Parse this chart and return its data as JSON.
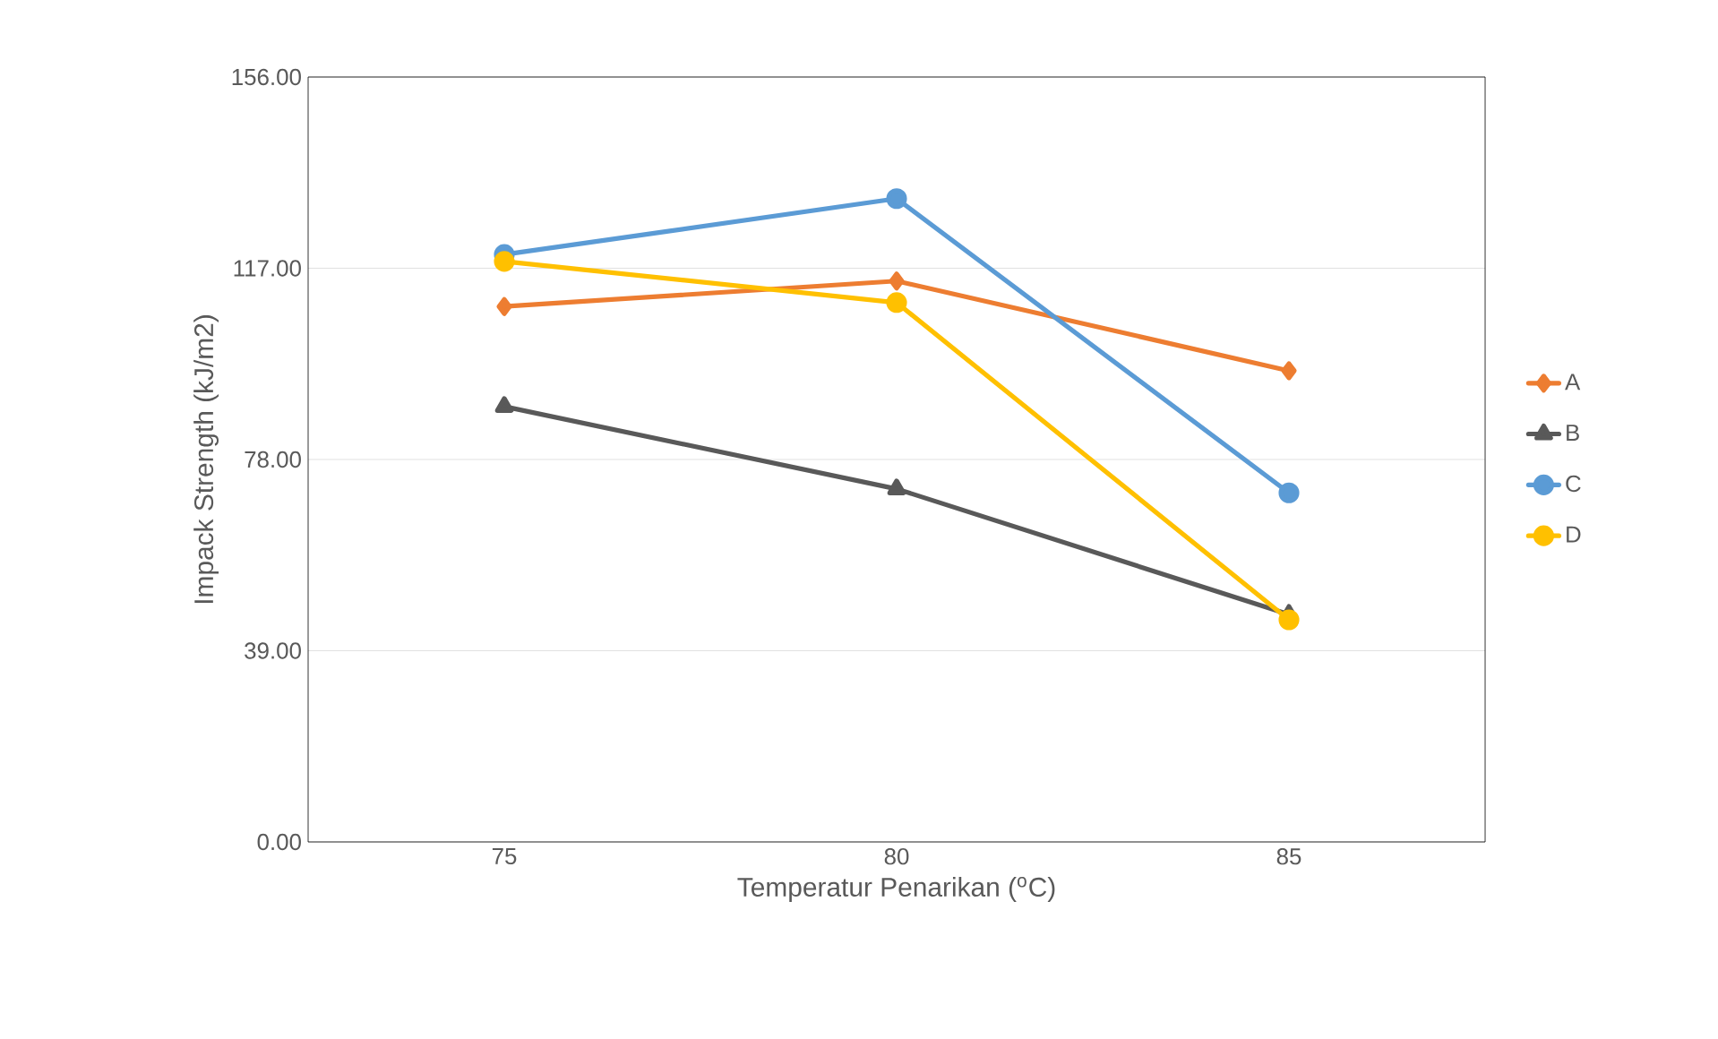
{
  "chart_data": {
    "type": "line",
    "xlabel": "Temperatur Penarikan ($^{o}$C)",
    "ylabel": "Impack Strength (kJ/m2)",
    "categories": [
      "75",
      "80",
      "85"
    ],
    "series": [
      {
        "name": "A",
        "color": "#ed7d31",
        "marker": "diamond",
        "values": [
          109.2,
          114.4,
          96.1
        ]
      },
      {
        "name": "B",
        "color": "#595959",
        "marker": "triangle",
        "values": [
          88.8,
          72.0,
          46.4
        ]
      },
      {
        "name": "C",
        "color": "#5b9bd5",
        "marker": "circle",
        "values": [
          119.8,
          131.2,
          71.2
        ]
      },
      {
        "name": "D",
        "color": "#ffc000",
        "marker": "circle",
        "values": [
          118.4,
          110.0,
          45.3
        ]
      }
    ],
    "ylim": [
      0,
      156
    ],
    "yticks": [
      {
        "value": 0,
        "label": "0.00"
      },
      {
        "value": 39,
        "label": "39.00"
      },
      {
        "value": 78,
        "label": "78.00"
      },
      {
        "value": 117,
        "label": "117.00"
      },
      {
        "value": 156,
        "label": "156.00"
      }
    ],
    "grid": "y",
    "legend": "right",
    "line_style": "solid"
  }
}
